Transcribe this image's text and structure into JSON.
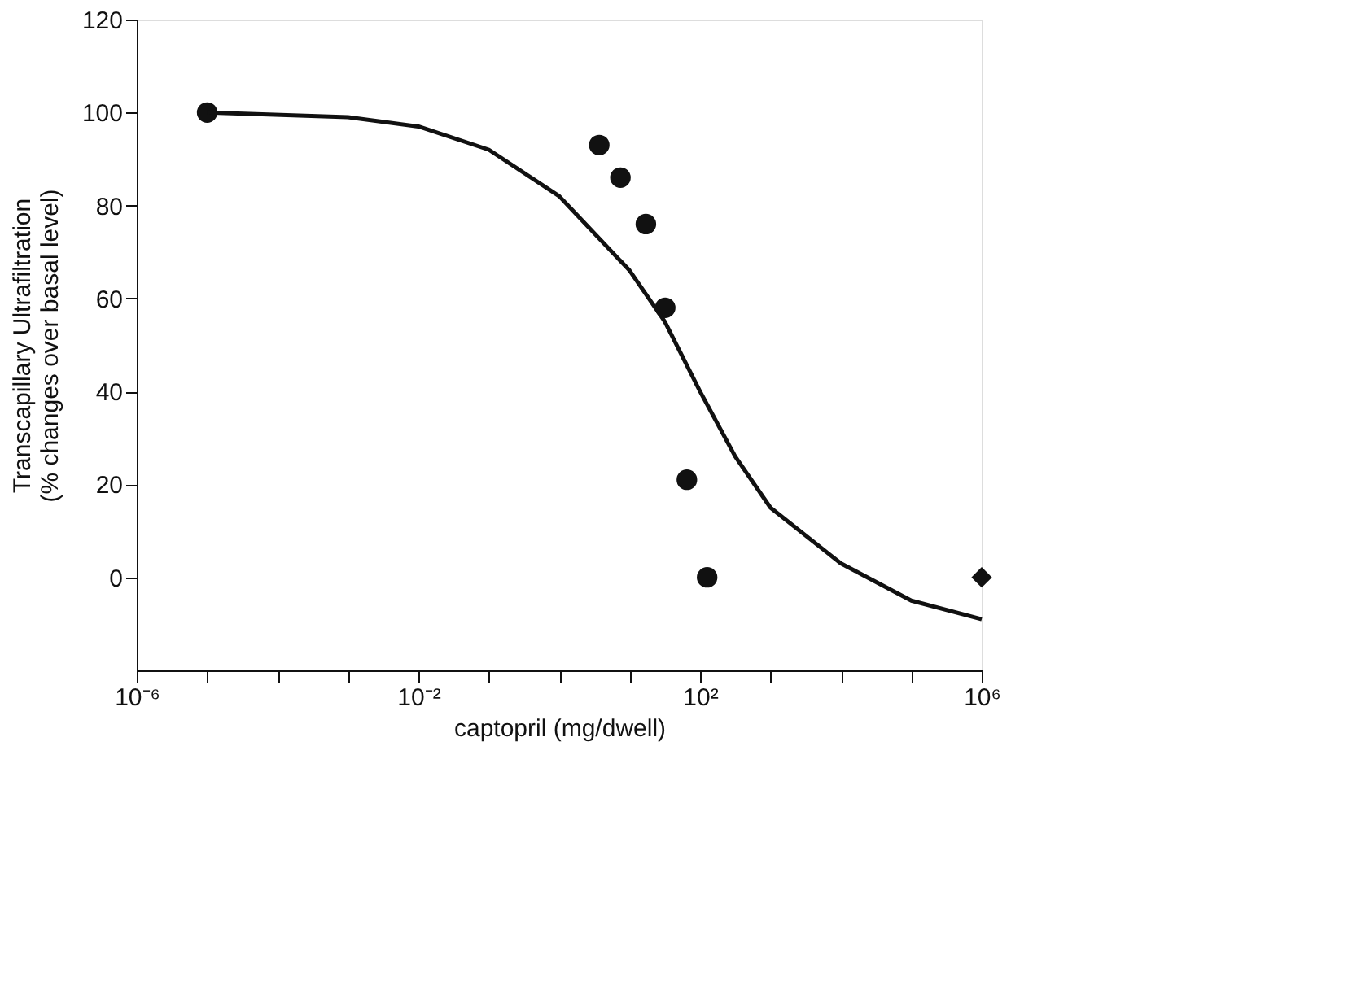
{
  "chart_data": {
    "type": "scatter",
    "xlabel": "captopril (mg/dwell)",
    "ylabel": "Transcapillary Ultrafiltration\n(% changes over basal level)",
    "log": "x",
    "xlim": [
      1e-06,
      1000000
    ],
    "xticks": [
      {
        "value": 1e-06,
        "label": "10⁻⁶"
      },
      {
        "value": 1e-05,
        "label": null
      },
      {
        "value": 0.0001,
        "label": null
      },
      {
        "value": 0.001,
        "label": null
      },
      {
        "value": 0.01,
        "label": "10⁻²"
      },
      {
        "value": 0.1,
        "label": null
      },
      {
        "value": 1,
        "label": null
      },
      {
        "value": 10,
        "label": null
      },
      {
        "value": 100,
        "label": "10²"
      },
      {
        "value": 1000,
        "label": null
      },
      {
        "value": 10000,
        "label": null
      },
      {
        "value": 100000,
        "label": null
      },
      {
        "value": 1000000,
        "label": "10⁶"
      }
    ],
    "ylim": [
      -20,
      120
    ],
    "yticks": [
      0,
      20,
      40,
      60,
      80,
      100,
      120
    ],
    "grid": false,
    "series": [
      {
        "marker": "circle",
        "color": "#111111",
        "x": [
          1e-05,
          3.7,
          7.4,
          17,
          32,
          65,
          126
        ],
        "values": [
          100,
          93,
          86,
          76,
          58,
          21,
          0
        ]
      },
      {
        "marker": "diamond",
        "color": "#111111",
        "x": [
          1000000
        ],
        "values": [
          0
        ]
      },
      {
        "type": "line",
        "line_style": "solid",
        "color": "#111111",
        "x": [
          1e-05,
          0.001,
          0.01,
          0.1,
          1,
          10,
          31.6,
          100,
          316,
          1000,
          10000,
          100000,
          1000000
        ],
        "values": [
          100,
          99,
          97,
          92,
          82,
          66,
          55,
          40,
          26,
          15,
          3,
          -5,
          -9
        ]
      }
    ]
  }
}
